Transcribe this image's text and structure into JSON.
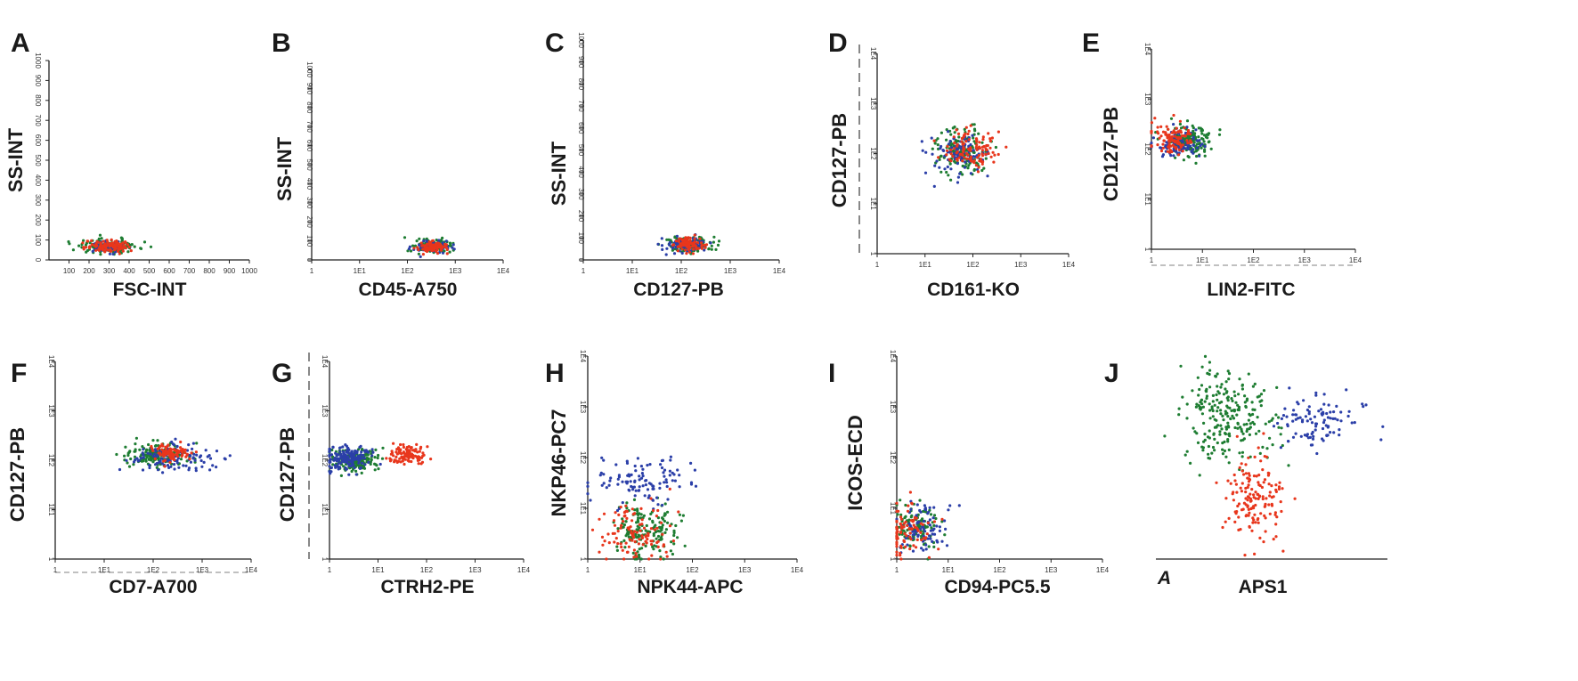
{
  "colors": {
    "green": "#1e7d32",
    "blue": "#2b3fa8",
    "red": "#e8361c"
  },
  "chart_data": [
    {
      "id": "A",
      "type": "scatter",
      "xlabel": "FSC-INT",
      "ylabel": "SS-INT",
      "xscale": "linear",
      "yscale": "linear",
      "xlim": [
        0,
        1000
      ],
      "ylim": [
        0,
        1000
      ],
      "xticks": [
        "100",
        "200",
        "300",
        "400",
        "500",
        "600",
        "700",
        "800",
        "900",
        "1000"
      ],
      "yticks": [
        "0",
        "100",
        "200",
        "300",
        "400",
        "500",
        "600",
        "700",
        "800",
        "900",
        "1000"
      ],
      "series": [
        {
          "name": "green",
          "color": "green",
          "n": 110,
          "cx": 300,
          "cy": 70,
          "sx": 80,
          "sy": 18
        },
        {
          "name": "blue",
          "color": "blue",
          "n": 60,
          "cx": 290,
          "cy": 68,
          "sx": 55,
          "sy": 15
        },
        {
          "name": "red",
          "color": "red",
          "n": 110,
          "cx": 300,
          "cy": 70,
          "sx": 55,
          "sy": 16
        }
      ]
    },
    {
      "id": "B",
      "type": "scatter",
      "xlabel": "CD45-A750",
      "ylabel": "SS-INT",
      "xscale": "log",
      "yscale": "linear",
      "xlim": [
        0,
        4
      ],
      "ylim": [
        0,
        1000
      ],
      "xticks": [
        "1",
        "1E1",
        "1E2",
        "1E3",
        "1E4"
      ],
      "yticks": [
        "0",
        "100",
        "200",
        "300",
        "400",
        "500",
        "600",
        "700",
        "800",
        "900",
        "1000"
      ],
      "series": [
        {
          "name": "green",
          "color": "green",
          "n": 100,
          "cx": 2.5,
          "cy": 70,
          "sx": 0.2,
          "sy": 18
        },
        {
          "name": "blue",
          "color": "blue",
          "n": 80,
          "cx": 2.5,
          "cy": 68,
          "sx": 0.18,
          "sy": 16
        },
        {
          "name": "red",
          "color": "red",
          "n": 100,
          "cx": 2.55,
          "cy": 70,
          "sx": 0.15,
          "sy": 16
        }
      ]
    },
    {
      "id": "C",
      "type": "scatter",
      "xlabel": "CD127-PB",
      "ylabel": "SS-INT",
      "xscale": "log",
      "yscale": "linear",
      "xlim": [
        0,
        4
      ],
      "ylim": [
        0,
        1000
      ],
      "xticks": [
        "1",
        "1E1",
        "1E2",
        "1E3",
        "1E4"
      ],
      "yticks": [
        "0",
        "100",
        "200",
        "300",
        "400",
        "500",
        "600",
        "700",
        "800",
        "900",
        "1000"
      ],
      "series": [
        {
          "name": "green",
          "color": "green",
          "n": 110,
          "cx": 2.15,
          "cy": 70,
          "sx": 0.25,
          "sy": 18
        },
        {
          "name": "blue",
          "color": "blue",
          "n": 90,
          "cx": 2.1,
          "cy": 70,
          "sx": 0.25,
          "sy": 18
        },
        {
          "name": "red",
          "color": "red",
          "n": 90,
          "cx": 2.15,
          "cy": 72,
          "sx": 0.15,
          "sy": 16
        }
      ]
    },
    {
      "id": "D",
      "type": "scatter",
      "xlabel": "CD161-KO",
      "ylabel": "CD127-PB",
      "xscale": "log",
      "yscale": "log",
      "xlim": [
        0,
        4
      ],
      "ylim": [
        0,
        4
      ],
      "xticks": [
        "1",
        "1E1",
        "1E2",
        "1E3",
        "1E4"
      ],
      "yticks": [
        "1",
        "1E1",
        "1E2",
        "1E3",
        "1E4"
      ],
      "series": [
        {
          "name": "green",
          "color": "green",
          "n": 150,
          "cx": 1.75,
          "cy": 2.05,
          "sx": 0.3,
          "sy": 0.22
        },
        {
          "name": "blue",
          "color": "blue",
          "n": 100,
          "cx": 1.8,
          "cy": 2.05,
          "sx": 0.3,
          "sy": 0.22
        },
        {
          "name": "red",
          "color": "red",
          "n": 110,
          "cx": 2.0,
          "cy": 2.1,
          "sx": 0.25,
          "sy": 0.18
        }
      ]
    },
    {
      "id": "E",
      "type": "scatter",
      "xlabel": "LIN2-FITC",
      "ylabel": "CD127-PB",
      "xscale": "log",
      "yscale": "log",
      "xlim": [
        0,
        4
      ],
      "ylim": [
        0,
        4
      ],
      "xticks": [
        "1",
        "1E1",
        "1E2",
        "1E3",
        "1E4"
      ],
      "yticks": [
        "1",
        "1E1",
        "1E2",
        "1E3",
        "1E4"
      ],
      "series": [
        {
          "name": "green",
          "color": "green",
          "n": 150,
          "cx": 0.75,
          "cy": 2.15,
          "sx": 0.25,
          "sy": 0.15
        },
        {
          "name": "blue",
          "color": "blue",
          "n": 90,
          "cx": 0.6,
          "cy": 2.1,
          "sx": 0.25,
          "sy": 0.15
        },
        {
          "name": "red",
          "color": "red",
          "n": 100,
          "cx": 0.4,
          "cy": 2.2,
          "sx": 0.2,
          "sy": 0.14
        }
      ]
    },
    {
      "id": "F",
      "type": "scatter",
      "xlabel": "CD7-A700",
      "ylabel": "CD127-PB",
      "xscale": "log",
      "yscale": "log",
      "xlim": [
        0,
        4
      ],
      "ylim": [
        0,
        4
      ],
      "xticks": [
        "1",
        "1E1",
        "1E2",
        "1E3",
        "1E4"
      ],
      "yticks": [
        "1",
        "1E1",
        "1E2",
        "1E3",
        "1E4"
      ],
      "series": [
        {
          "name": "green",
          "color": "green",
          "n": 150,
          "cx": 2.0,
          "cy": 2.1,
          "sx": 0.3,
          "sy": 0.12
        },
        {
          "name": "blue",
          "color": "blue",
          "n": 110,
          "cx": 2.4,
          "cy": 2.05,
          "sx": 0.4,
          "sy": 0.13
        },
        {
          "name": "red",
          "color": "red",
          "n": 90,
          "cx": 2.35,
          "cy": 2.15,
          "sx": 0.2,
          "sy": 0.1
        }
      ]
    },
    {
      "id": "G",
      "type": "scatter",
      "xlabel": "CTRH2-PE",
      "ylabel": "CD127-PB",
      "xscale": "log",
      "yscale": "log",
      "xlim": [
        0,
        4
      ],
      "ylim": [
        0,
        4
      ],
      "xticks": [
        "1",
        "1E1",
        "1E2",
        "1E3",
        "1E4"
      ],
      "yticks": [
        "1",
        "1E1",
        "1E2",
        "1E3",
        "1E4"
      ],
      "series": [
        {
          "name": "green",
          "color": "green",
          "n": 180,
          "cx": 0.5,
          "cy": 2.0,
          "sx": 0.25,
          "sy": 0.12
        },
        {
          "name": "blue",
          "color": "blue",
          "n": 170,
          "cx": 0.35,
          "cy": 2.05,
          "sx": 0.25,
          "sy": 0.12
        },
        {
          "name": "red",
          "color": "red",
          "n": 100,
          "cx": 1.6,
          "cy": 2.1,
          "sx": 0.22,
          "sy": 0.1
        }
      ]
    },
    {
      "id": "H",
      "type": "scatter",
      "xlabel": "NPK44-APC",
      "ylabel": "NKP46-PC7",
      "xscale": "log",
      "yscale": "log",
      "xlim": [
        0,
        4
      ],
      "ylim": [
        0,
        4
      ],
      "xticks": [
        "1",
        "1E1",
        "1E2",
        "1E3",
        "1E4"
      ],
      "yticks": [
        "1",
        "1E1",
        "1E2",
        "1E3",
        "1E4"
      ],
      "series": [
        {
          "name": "green",
          "color": "green",
          "n": 160,
          "cx": 1.1,
          "cy": 0.55,
          "sx": 0.3,
          "sy": 0.25
        },
        {
          "name": "blue",
          "color": "blue",
          "n": 110,
          "cx": 1.0,
          "cy": 1.5,
          "sx": 0.5,
          "sy": 0.25
        },
        {
          "name": "red",
          "color": "red",
          "n": 110,
          "cx": 0.9,
          "cy": 0.5,
          "sx": 0.35,
          "sy": 0.3
        }
      ]
    },
    {
      "id": "I",
      "type": "scatter",
      "xlabel": "CD94-PC5.5",
      "ylabel": "ICOS-ECD",
      "xscale": "log",
      "yscale": "log",
      "xlim": [
        0,
        4
      ],
      "ylim": [
        0,
        4
      ],
      "xticks": [
        "1",
        "1E1",
        "1E2",
        "1E3",
        "1E4"
      ],
      "yticks": [
        "1",
        "1E1",
        "1E2",
        "1E3",
        "1E4"
      ],
      "series": [
        {
          "name": "green",
          "color": "green",
          "n": 100,
          "cx": 0.4,
          "cy": 0.6,
          "sx": 0.25,
          "sy": 0.22
        },
        {
          "name": "blue",
          "color": "blue",
          "n": 90,
          "cx": 0.5,
          "cy": 0.6,
          "sx": 0.25,
          "sy": 0.22
        },
        {
          "name": "red",
          "color": "red",
          "n": 90,
          "cx": 0.25,
          "cy": 0.55,
          "sx": 0.25,
          "sy": 0.3
        }
      ]
    },
    {
      "id": "J",
      "type": "scatter",
      "xlabel": "APS1",
      "ylabel": "",
      "corner_label": "A",
      "xscale": "linear",
      "yscale": "linear",
      "xlim": [
        0,
        100
      ],
      "ylim": [
        0,
        100
      ],
      "xticks": [],
      "yticks": [],
      "series": [
        {
          "name": "green",
          "color": "green",
          "n": 240,
          "cx": 32,
          "cy": 65,
          "sx": 11,
          "sy": 11
        },
        {
          "name": "blue",
          "color": "blue",
          "n": 100,
          "cx": 70,
          "cy": 62,
          "sx": 9,
          "sy": 6
        },
        {
          "name": "red",
          "color": "red",
          "n": 150,
          "cx": 42,
          "cy": 28,
          "sx": 6,
          "sy": 10
        }
      ]
    }
  ]
}
